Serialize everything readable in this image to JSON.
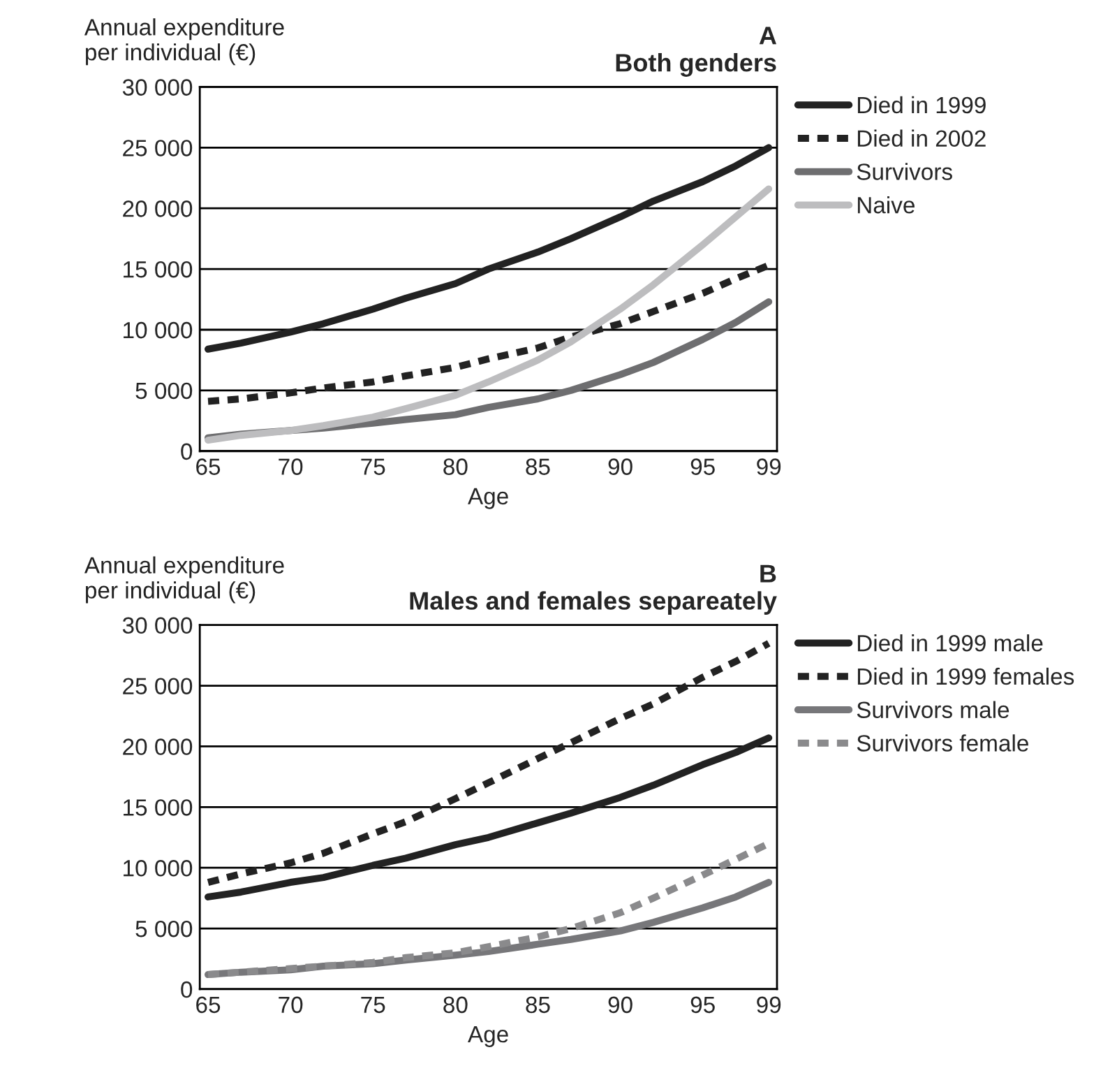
{
  "chart_data": [
    {
      "type": "line",
      "title": "A\nBoth genders",
      "ylabel": "Annual expenditure\nper individual (€)",
      "xlabel": "Age",
      "x": [
        65,
        67,
        70,
        72,
        75,
        77,
        80,
        82,
        85,
        87,
        90,
        92,
        95,
        97,
        99
      ],
      "series": [
        {
          "name": "Died in 1999",
          "color": "#222222",
          "line_style": "solid",
          "values": [
            8400,
            8900,
            9800,
            10500,
            11700,
            12600,
            13800,
            15000,
            16400,
            17500,
            19300,
            20600,
            22200,
            23500,
            25000
          ]
        },
        {
          "name": "Died in 2002",
          "color": "#222222",
          "line_style": "dashed",
          "values": [
            4100,
            4300,
            4800,
            5200,
            5700,
            6200,
            6900,
            7600,
            8500,
            9400,
            10500,
            11500,
            13000,
            14200,
            15300
          ]
        },
        {
          "name": "Survivors",
          "color": "#6e6e70",
          "line_style": "solid",
          "values": [
            1100,
            1400,
            1700,
            1900,
            2300,
            2600,
            3000,
            3600,
            4300,
            5000,
            6300,
            7300,
            9200,
            10600,
            12300
          ]
        },
        {
          "name": "Naive",
          "color": "#bdbdbf",
          "line_style": "solid",
          "values": [
            900,
            1300,
            1700,
            2100,
            2800,
            3500,
            4600,
            5700,
            7500,
            9000,
            11700,
            13700,
            17000,
            19300,
            21600
          ]
        }
      ],
      "xlim": [
        64.5,
        99.5
      ],
      "xticks": [
        65,
        70,
        75,
        80,
        85,
        90,
        95,
        99
      ],
      "ylim": [
        0,
        30000
      ],
      "yticks": [
        0,
        {
          "value": 5000,
          "label": "5 000"
        },
        {
          "value": 10000,
          "label": "10 000"
        },
        {
          "value": 15000,
          "label": "15 000"
        },
        {
          "value": 20000,
          "label": "20 000"
        },
        {
          "value": 25000,
          "label": "25 000"
        },
        {
          "value": 30000,
          "label": "30 000"
        }
      ],
      "grid": "y",
      "legend": "top right",
      "marker": "none"
    },
    {
      "type": "line",
      "title": "B\nMales and females separeately",
      "ylabel": "Annual expenditure\nper individual (€)",
      "xlabel": "Age",
      "x": [
        65,
        67,
        70,
        72,
        75,
        77,
        80,
        82,
        85,
        87,
        90,
        92,
        95,
        97,
        99
      ],
      "series": [
        {
          "name": "Died in 1999 male",
          "color": "#222222",
          "line_style": "solid",
          "values": [
            7600,
            8000,
            8800,
            9200,
            10200,
            10800,
            11900,
            12500,
            13700,
            14500,
            15800,
            16800,
            18500,
            19500,
            20700
          ]
        },
        {
          "name": "Died in 1999 females",
          "color": "#222222",
          "line_style": "dashed",
          "values": [
            8800,
            9500,
            10400,
            11200,
            12800,
            13800,
            15700,
            17000,
            19000,
            20300,
            22300,
            23500,
            25700,
            27000,
            28500
          ]
        },
        {
          "name": "Survivors male",
          "color": "#77777a",
          "line_style": "solid",
          "values": [
            1200,
            1400,
            1600,
            1900,
            2100,
            2400,
            2800,
            3100,
            3700,
            4100,
            4800,
            5500,
            6700,
            7600,
            8800
          ]
        },
        {
          "name": "Survivors female",
          "color": "#8a8a8c",
          "line_style": "dashed",
          "values": [
            1200,
            1400,
            1700,
            1900,
            2200,
            2600,
            3000,
            3500,
            4300,
            5000,
            6300,
            7500,
            9400,
            10700,
            12000
          ]
        }
      ],
      "xlim": [
        64.5,
        99.5
      ],
      "xticks": [
        65,
        70,
        75,
        80,
        85,
        90,
        95,
        99
      ],
      "ylim": [
        0,
        30000
      ],
      "yticks": [
        0,
        {
          "value": 5000,
          "label": "5 000"
        },
        {
          "value": 10000,
          "label": "10 000"
        },
        {
          "value": 15000,
          "label": "15 000"
        },
        {
          "value": 20000,
          "label": "20 000"
        },
        {
          "value": 25000,
          "label": "25 000"
        },
        {
          "value": 30000,
          "label": "30 000"
        }
      ],
      "grid": "y",
      "legend": "top right",
      "marker": "none"
    }
  ]
}
